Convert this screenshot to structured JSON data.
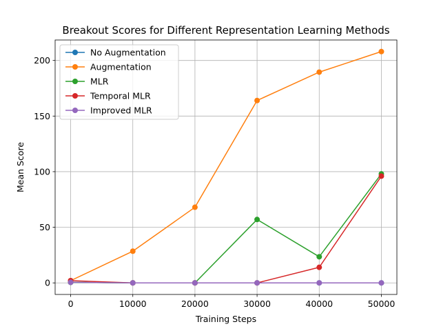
{
  "chart_data": {
    "type": "line",
    "title": "Breakout Scores for Different Representation Learning Methods",
    "xlabel": "Training Steps",
    "ylabel": "Mean Score",
    "x": [
      0,
      10000,
      20000,
      30000,
      40000,
      50000
    ],
    "xticks": [
      0,
      10000,
      20000,
      30000,
      40000,
      50000
    ],
    "yticks": [
      0,
      50,
      100,
      150,
      200
    ],
    "xlim": [
      -2500,
      52500
    ],
    "ylim": [
      -10.4,
      218.4
    ],
    "grid": true,
    "legend_position": "top-left",
    "series": [
      {
        "name": "No Augmentation",
        "color": "#1f77b4",
        "values": [
          0.5,
          0,
          0,
          0,
          0,
          0
        ]
      },
      {
        "name": "Augmentation",
        "color": "#ff7f0e",
        "values": [
          2,
          28.5,
          68,
          164,
          189.5,
          208
        ]
      },
      {
        "name": "MLR",
        "color": "#2ca02c",
        "values": [
          0.5,
          0,
          0,
          57,
          23.5,
          98
        ]
      },
      {
        "name": "Temporal MLR",
        "color": "#d62728",
        "values": [
          2,
          0,
          0,
          0,
          14,
          96
        ]
      },
      {
        "name": "Improved MLR",
        "color": "#9467bd",
        "values": [
          0.5,
          0,
          0,
          0,
          0,
          0
        ]
      }
    ]
  }
}
